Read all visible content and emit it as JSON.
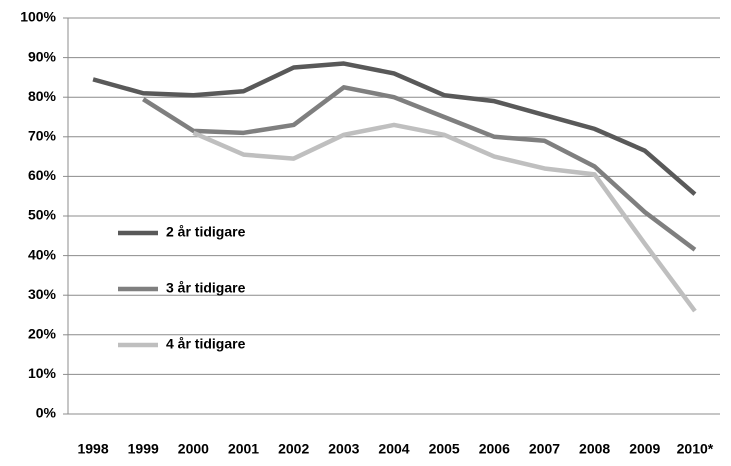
{
  "chart_data": {
    "type": "line",
    "categories": [
      "1998",
      "1999",
      "2000",
      "2001",
      "2002",
      "2003",
      "2004",
      "2005",
      "2006",
      "2007",
      "2008",
      "2009",
      "2010*"
    ],
    "series": [
      {
        "name": "2 år tidigare",
        "color": "#595959",
        "values": [
          84.5,
          81,
          80.5,
          81.5,
          87.5,
          88.5,
          86,
          80.5,
          79,
          75.5,
          72,
          66.5,
          55.5
        ]
      },
      {
        "name": "3 år tidigare",
        "color": "#7f7f7f",
        "values": [
          null,
          79.5,
          71.5,
          71,
          73,
          82.5,
          80,
          75,
          70,
          69,
          62.5,
          51,
          41.5
        ]
      },
      {
        "name": "4 år tidigare",
        "color": "#bfbfbf",
        "values": [
          null,
          null,
          71,
          65.5,
          64.5,
          70.5,
          73,
          70.5,
          65,
          62,
          60.5,
          43,
          26
        ]
      }
    ],
    "ylim": [
      0,
      100
    ],
    "yticks": [
      {
        "value": 0,
        "label": "0%"
      },
      {
        "value": 10,
        "label": "10%"
      },
      {
        "value": 20,
        "label": "20%"
      },
      {
        "value": 30,
        "label": "30%"
      },
      {
        "value": 40,
        "label": "40%"
      },
      {
        "value": 50,
        "label": "50%"
      },
      {
        "value": 60,
        "label": "60%"
      },
      {
        "value": 70,
        "label": "70%"
      },
      {
        "value": 80,
        "label": "80%"
      },
      {
        "value": 90,
        "label": "90%"
      },
      {
        "value": 100,
        "label": "100%"
      }
    ],
    "grid": true
  }
}
